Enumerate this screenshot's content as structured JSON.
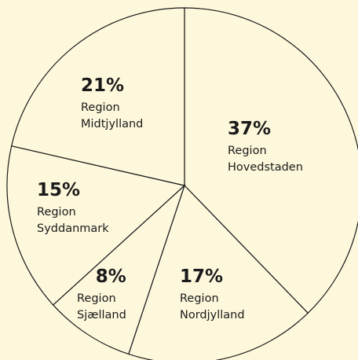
{
  "chart_data": {
    "type": "pie",
    "categories": [
      "Region Hovedstaden",
      "Region Nordjylland",
      "Region Sjælland",
      "Region Syddanmark",
      "Region Midtjylland"
    ],
    "values": [
      37,
      17,
      8,
      15,
      21
    ],
    "value_labels": [
      "37%",
      "17%",
      "8%",
      "15%",
      "21%"
    ],
    "color": "#fdf8dc"
  }
}
